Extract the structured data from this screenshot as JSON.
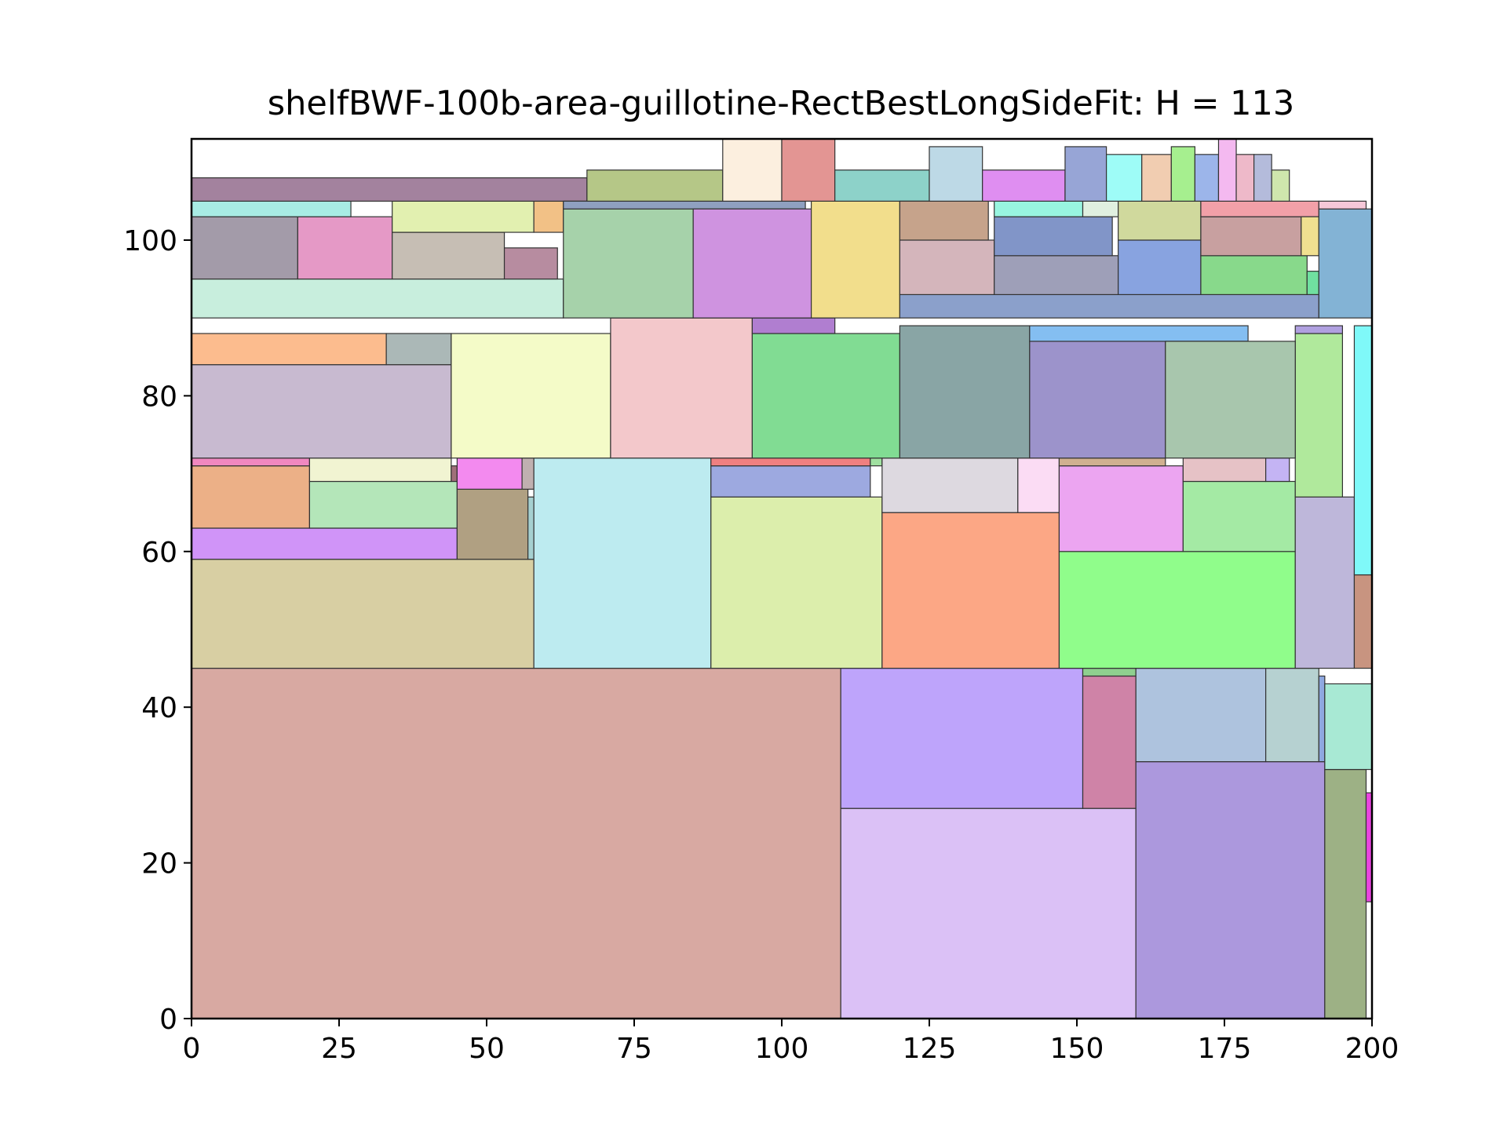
{
  "chart_data": {
    "type": "rectangle-packing",
    "title": "shelfBWF-100b-area-guillotine-RectBestLongSideFit: H = 113",
    "xlabel": "",
    "ylabel": "",
    "xlim": [
      0,
      200
    ],
    "ylim": [
      0,
      113
    ],
    "xticks": [
      0,
      25,
      50,
      75,
      100,
      125,
      150,
      175,
      200
    ],
    "yticks": [
      0,
      20,
      40,
      60,
      80,
      100
    ],
    "grid": false,
    "rectangles": [
      {
        "x": 0,
        "y": 0,
        "w": 110,
        "h": 45,
        "color": "#d8a9a2"
      },
      {
        "x": 110,
        "y": 0,
        "w": 50,
        "h": 27,
        "color": "#dbc1f6"
      },
      {
        "x": 110,
        "y": 27,
        "w": 41,
        "h": 18,
        "color": "#bea4fb"
      },
      {
        "x": 151,
        "y": 27,
        "w": 9,
        "h": 17,
        "color": "#cf83a7"
      },
      {
        "x": 151,
        "y": 44,
        "w": 9,
        "h": 1,
        "color": "#8fd08f"
      },
      {
        "x": 160,
        "y": 0,
        "w": 32,
        "h": 33,
        "color": "#ac98dd"
      },
      {
        "x": 160,
        "y": 33,
        "w": 22,
        "h": 12,
        "color": "#aec3de"
      },
      {
        "x": 182,
        "y": 33,
        "w": 9,
        "h": 12,
        "color": "#b6d1d1"
      },
      {
        "x": 191,
        "y": 33,
        "w": 1,
        "h": 11,
        "color": "#8fa8e0"
      },
      {
        "x": 192,
        "y": 0,
        "w": 7,
        "h": 32,
        "color": "#9db185"
      },
      {
        "x": 192,
        "y": 32,
        "w": 8,
        "h": 11,
        "color": "#a8e9d4"
      },
      {
        "x": 199,
        "y": 15,
        "w": 1,
        "h": 14,
        "color": "#ea44e0"
      },
      {
        "x": 0,
        "y": 45,
        "w": 58,
        "h": 14,
        "color": "#d8cfa3"
      },
      {
        "x": 0,
        "y": 59,
        "w": 45,
        "h": 4,
        "color": "#d094f8"
      },
      {
        "x": 0,
        "y": 63,
        "w": 20,
        "h": 8,
        "color": "#ecb087"
      },
      {
        "x": 0,
        "y": 71,
        "w": 20,
        "h": 1,
        "color": "#f088c0"
      },
      {
        "x": 20,
        "y": 63,
        "w": 25,
        "h": 6,
        "color": "#b4e6b9"
      },
      {
        "x": 20,
        "y": 69,
        "w": 24,
        "h": 3,
        "color": "#f1f4d2"
      },
      {
        "x": 44,
        "y": 69,
        "w": 1,
        "h": 2,
        "color": "#a0707a"
      },
      {
        "x": 45,
        "y": 59,
        "w": 12,
        "h": 9,
        "color": "#b0a082"
      },
      {
        "x": 57,
        "y": 59,
        "w": 1,
        "h": 8,
        "color": "#a6d0d0"
      },
      {
        "x": 45,
        "y": 68,
        "w": 11,
        "h": 4,
        "color": "#f38aef"
      },
      {
        "x": 56,
        "y": 68,
        "w": 2,
        "h": 4,
        "color": "#c0b0b0"
      },
      {
        "x": 58,
        "y": 45,
        "w": 30,
        "h": 27,
        "color": "#bdebf0"
      },
      {
        "x": 88,
        "y": 45,
        "w": 29,
        "h": 22,
        "color": "#dceeac"
      },
      {
        "x": 88,
        "y": 67,
        "w": 27,
        "h": 4,
        "color": "#9da9e0"
      },
      {
        "x": 88,
        "y": 71,
        "w": 27,
        "h": 1,
        "color": "#f08080"
      },
      {
        "x": 115,
        "y": 71,
        "w": 2,
        "h": 1,
        "color": "#a0e0a0"
      },
      {
        "x": 117,
        "y": 45,
        "w": 30,
        "h": 20,
        "color": "#fca785"
      },
      {
        "x": 117,
        "y": 65,
        "w": 23,
        "h": 7,
        "color": "#ddd9e0"
      },
      {
        "x": 140,
        "y": 65,
        "w": 7,
        "h": 7,
        "color": "#fbdcf4"
      },
      {
        "x": 147,
        "y": 45,
        "w": 40,
        "h": 15,
        "color": "#90fd8b"
      },
      {
        "x": 147,
        "y": 60,
        "w": 21,
        "h": 11,
        "color": "#eca5f1"
      },
      {
        "x": 147,
        "y": 71,
        "w": 18,
        "h": 1,
        "color": "#d0b090"
      },
      {
        "x": 168,
        "y": 60,
        "w": 19,
        "h": 9,
        "color": "#a4eaa4"
      },
      {
        "x": 168,
        "y": 69,
        "w": 14,
        "h": 3,
        "color": "#e6c2c6"
      },
      {
        "x": 182,
        "y": 69,
        "w": 4,
        "h": 3,
        "color": "#c4b4f4"
      },
      {
        "x": 187,
        "y": 45,
        "w": 10,
        "h": 22,
        "color": "#beb7da"
      },
      {
        "x": 197,
        "y": 45,
        "w": 3,
        "h": 12,
        "color": "#c89480"
      },
      {
        "x": 197,
        "y": 57,
        "w": 3,
        "h": 32,
        "color": "#7ff9f9"
      },
      {
        "x": 187,
        "y": 67,
        "w": 8,
        "h": 21,
        "color": "#b0e99c"
      },
      {
        "x": 187,
        "y": 88,
        "w": 8,
        "h": 1,
        "color": "#b0a0e0"
      },
      {
        "x": 0,
        "y": 72,
        "w": 44,
        "h": 12,
        "color": "#c8bad0"
      },
      {
        "x": 0,
        "y": 84,
        "w": 33,
        "h": 4,
        "color": "#fcbc8e"
      },
      {
        "x": 33,
        "y": 84,
        "w": 11,
        "h": 4,
        "color": "#abb8b7"
      },
      {
        "x": 44,
        "y": 72,
        "w": 27,
        "h": 16,
        "color": "#f4fbc8"
      },
      {
        "x": 71,
        "y": 72,
        "w": 24,
        "h": 18,
        "color": "#f3c8cb"
      },
      {
        "x": 95,
        "y": 72,
        "w": 25,
        "h": 16,
        "color": "#81dc93"
      },
      {
        "x": 95,
        "y": 88,
        "w": 14,
        "h": 2,
        "color": "#b07ed0"
      },
      {
        "x": 120,
        "y": 72,
        "w": 22,
        "h": 17,
        "color": "#89a5a5"
      },
      {
        "x": 142,
        "y": 72,
        "w": 23,
        "h": 15,
        "color": "#9c93cb"
      },
      {
        "x": 142,
        "y": 87,
        "w": 37,
        "h": 2,
        "color": "#84bef1"
      },
      {
        "x": 165,
        "y": 72,
        "w": 22,
        "h": 15,
        "color": "#a8c6ad"
      },
      {
        "x": 0,
        "y": 90,
        "w": 63,
        "h": 5,
        "color": "#c8eedd"
      },
      {
        "x": 0,
        "y": 95,
        "w": 18,
        "h": 8,
        "color": "#a39ba9"
      },
      {
        "x": 18,
        "y": 95,
        "w": 16,
        "h": 8,
        "color": "#e599c6"
      },
      {
        "x": 34,
        "y": 95,
        "w": 19,
        "h": 6,
        "color": "#c6beb4"
      },
      {
        "x": 53,
        "y": 95,
        "w": 9,
        "h": 4,
        "color": "#b78ca0"
      },
      {
        "x": 0,
        "y": 103,
        "w": 27,
        "h": 2,
        "color": "#a8ece4"
      },
      {
        "x": 34,
        "y": 101,
        "w": 24,
        "h": 4,
        "color": "#e2f0b0"
      },
      {
        "x": 58,
        "y": 101,
        "w": 5,
        "h": 4,
        "color": "#f2c186"
      },
      {
        "x": 0,
        "y": 105,
        "w": 67,
        "h": 3,
        "color": "#a3829e"
      },
      {
        "x": 63,
        "y": 90,
        "w": 22,
        "h": 14,
        "color": "#a6d2aa"
      },
      {
        "x": 63,
        "y": 104,
        "w": 41,
        "h": 1,
        "color": "#8fa0c0"
      },
      {
        "x": 85,
        "y": 90,
        "w": 20,
        "h": 14,
        "color": "#cf93e0"
      },
      {
        "x": 105,
        "y": 90,
        "w": 15,
        "h": 15,
        "color": "#f2de8c"
      },
      {
        "x": 67,
        "y": 105,
        "w": 23,
        "h": 4,
        "color": "#b5c787"
      },
      {
        "x": 90,
        "y": 105,
        "w": 10,
        "h": 8,
        "color": "#fcefdf"
      },
      {
        "x": 100,
        "y": 105,
        "w": 9,
        "h": 8,
        "color": "#e39593"
      },
      {
        "x": 109,
        "y": 105,
        "w": 16,
        "h": 4,
        "color": "#8dd2c9"
      },
      {
        "x": 120,
        "y": 90,
        "w": 71,
        "h": 3,
        "color": "#8ba0cb"
      },
      {
        "x": 120,
        "y": 93,
        "w": 16,
        "h": 7,
        "color": "#d4b5bb"
      },
      {
        "x": 120,
        "y": 100,
        "w": 15,
        "h": 5,
        "color": "#c6a38b"
      },
      {
        "x": 136,
        "y": 93,
        "w": 21,
        "h": 5,
        "color": "#9e9fb8"
      },
      {
        "x": 136,
        "y": 98,
        "w": 20,
        "h": 5,
        "color": "#8195c8"
      },
      {
        "x": 136,
        "y": 103,
        "w": 15,
        "h": 2,
        "color": "#98f5e0"
      },
      {
        "x": 151,
        "y": 103,
        "w": 6,
        "h": 2,
        "color": "#e0f0e0"
      },
      {
        "x": 157,
        "y": 93,
        "w": 14,
        "h": 7,
        "color": "#88a3e0"
      },
      {
        "x": 157,
        "y": 100,
        "w": 14,
        "h": 5,
        "color": "#d0d99d"
      },
      {
        "x": 171,
        "y": 93,
        "w": 18,
        "h": 5,
        "color": "#88d98b"
      },
      {
        "x": 171,
        "y": 98,
        "w": 17,
        "h": 5,
        "color": "#c8a0a0"
      },
      {
        "x": 171,
        "y": 103,
        "w": 20,
        "h": 2,
        "color": "#f2a0a8"
      },
      {
        "x": 188,
        "y": 98,
        "w": 3,
        "h": 5,
        "color": "#f0e090"
      },
      {
        "x": 189,
        "y": 93,
        "w": 2,
        "h": 3,
        "color": "#70e0a0"
      },
      {
        "x": 191,
        "y": 90,
        "w": 9,
        "h": 14,
        "color": "#83b3d5"
      },
      {
        "x": 191,
        "y": 104,
        "w": 8,
        "h": 1,
        "color": "#f5c8d8"
      },
      {
        "x": 125,
        "y": 105,
        "w": 9,
        "h": 7,
        "color": "#bdd9e6"
      },
      {
        "x": 134,
        "y": 105,
        "w": 14,
        "h": 4,
        "color": "#df8ef1"
      },
      {
        "x": 148,
        "y": 105,
        "w": 7,
        "h": 7,
        "color": "#97a5d6"
      },
      {
        "x": 155,
        "y": 105,
        "w": 6,
        "h": 6,
        "color": "#9efcf7"
      },
      {
        "x": 161,
        "y": 105,
        "w": 5,
        "h": 6,
        "color": "#f1cdb1"
      },
      {
        "x": 166,
        "y": 105,
        "w": 4,
        "h": 7,
        "color": "#a6ef8f"
      },
      {
        "x": 170,
        "y": 105,
        "w": 4,
        "h": 6,
        "color": "#9cb5ea"
      },
      {
        "x": 174,
        "y": 105,
        "w": 3,
        "h": 8,
        "color": "#f4b9f0"
      },
      {
        "x": 177,
        "y": 105,
        "w": 3,
        "h": 6,
        "color": "#eeb9c9"
      },
      {
        "x": 180,
        "y": 105,
        "w": 3,
        "h": 6,
        "color": "#b4bbdb"
      },
      {
        "x": 183,
        "y": 105,
        "w": 3,
        "h": 4,
        "color": "#cfe6ad"
      }
    ]
  }
}
